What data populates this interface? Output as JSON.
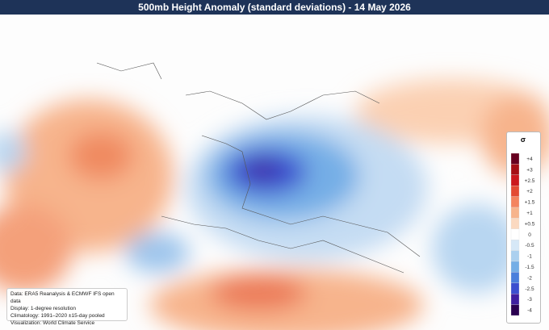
{
  "header": {
    "title": "500mb Height Anomaly (standard deviations) - 14 May 2026"
  },
  "legend": {
    "title": "σ",
    "entries": [
      {
        "label": "+4",
        "color": "#67001f"
      },
      {
        "label": "+3",
        "color": "#a50f15"
      },
      {
        "label": "+2.5",
        "color": "#cb181d"
      },
      {
        "label": "+2",
        "color": "#e34a33"
      },
      {
        "label": "+1.5",
        "color": "#f4845f"
      },
      {
        "label": "+1",
        "color": "#f7b48c"
      },
      {
        "label": "+0.5",
        "color": "#fbd9c0"
      },
      {
        "label": "0",
        "color": "#ffffff"
      },
      {
        "label": "-0.5",
        "color": "#d6e8f7"
      },
      {
        "label": "-1",
        "color": "#abd0ef"
      },
      {
        "label": "-1.5",
        "color": "#74aee6"
      },
      {
        "label": "-2",
        "color": "#4a7fdc"
      },
      {
        "label": "-2.5",
        "color": "#3b4fcf"
      },
      {
        "label": "-3",
        "color": "#3f1fa0"
      },
      {
        "label": "-4",
        "color": "#2a0050"
      }
    ]
  },
  "info": {
    "lines": [
      "Data: ERA5 Reanalysis & ECMWF IFS open data",
      "Display: 1-degree resolution",
      "Climatology: 1991–2020 ±15-day pooled",
      "Visualization: World Climate Service"
    ]
  }
}
